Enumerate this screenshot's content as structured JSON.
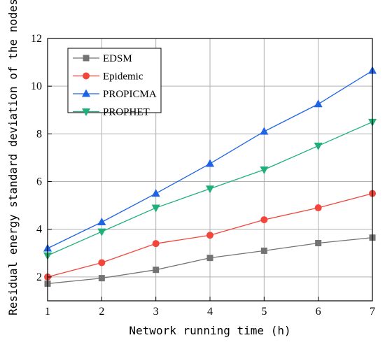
{
  "chart_data": {
    "type": "line",
    "title": "",
    "xlabel": "Network running time (h)",
    "ylabel": "Residual energy standard deviation of the nodes",
    "x": [
      1,
      2,
      3,
      4,
      5,
      6,
      7
    ],
    "xlim": [
      1,
      7
    ],
    "ylim": [
      1,
      12
    ],
    "xticks": [
      "1",
      "2",
      "3",
      "4",
      "5",
      "6",
      "7"
    ],
    "yticks": [
      "2",
      "4",
      "6",
      "8",
      "10",
      "12"
    ],
    "grid": true,
    "legend_position": "top-left",
    "series": [
      {
        "name": "EDSM",
        "color": "#737373",
        "marker": "square",
        "values": [
          1.72,
          1.95,
          2.3,
          2.8,
          3.1,
          3.42,
          3.65
        ]
      },
      {
        "name": "Epidemic",
        "color": "#f2463c",
        "marker": "circle",
        "values": [
          2.0,
          2.6,
          3.4,
          3.75,
          4.4,
          4.9,
          5.5
        ]
      },
      {
        "name": "PROPICMA",
        "color": "#1f64e6",
        "marker": "triangle-up",
        "values": [
          3.2,
          4.3,
          5.5,
          6.75,
          8.1,
          9.25,
          10.65
        ]
      },
      {
        "name": "PROPHET",
        "color": "#1fb07a",
        "marker": "triangle-down",
        "values": [
          2.9,
          3.9,
          4.9,
          5.7,
          6.5,
          7.5,
          8.5
        ]
      }
    ]
  }
}
